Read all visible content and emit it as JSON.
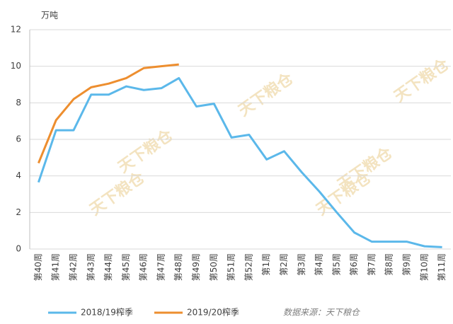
{
  "chart_data": {
    "type": "line",
    "y_unit": "万吨",
    "source": "数据来源：天下粮仓",
    "watermark": "天下粮仓",
    "categories": [
      "第40周",
      "第41周",
      "第42周",
      "第43周",
      "第44周",
      "第45周",
      "第46周",
      "第47周",
      "第48周",
      "第49周",
      "第50周",
      "第51周",
      "第52周",
      "第1周",
      "第2周",
      "第3周",
      "第4周",
      "第5周",
      "第6周",
      "第7周",
      "第8周",
      "第9周",
      "第10周",
      "第11周"
    ],
    "series": [
      {
        "name": "2018/19榨季",
        "color": "#5bb8ea",
        "values": [
          3.65,
          6.5,
          6.5,
          8.45,
          8.45,
          8.9,
          8.7,
          8.8,
          9.35,
          7.8,
          7.95,
          6.1,
          6.25,
          4.9,
          5.35,
          4.2,
          3.15,
          2.0,
          0.9,
          0.4,
          0.4,
          0.4,
          0.15,
          0.1
        ]
      },
      {
        "name": "2019/20榨季",
        "color": "#ed8e2f",
        "values": [
          4.7,
          7.05,
          8.2,
          8.85,
          9.05,
          9.35,
          9.9,
          10.0,
          10.1,
          null,
          null,
          null,
          null,
          null,
          null,
          null,
          null,
          null,
          null,
          null,
          null,
          null,
          null,
          null
        ]
      }
    ],
    "ylim": [
      0,
      12
    ],
    "yticks": [
      0,
      2,
      4,
      6,
      8,
      10,
      12
    ],
    "grid": true
  }
}
